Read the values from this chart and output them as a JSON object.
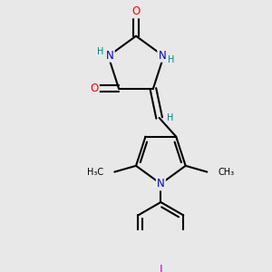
{
  "background_color": "#e8e8e8",
  "atom_colors": {
    "O": "#ff0000",
    "N": "#0000cc",
    "I": "#cc00cc",
    "H": "#008080",
    "C": "#000000"
  },
  "bond_color": "#000000",
  "bond_width": 1.5,
  "font_size_atoms": 8.5,
  "font_size_small": 7.0
}
